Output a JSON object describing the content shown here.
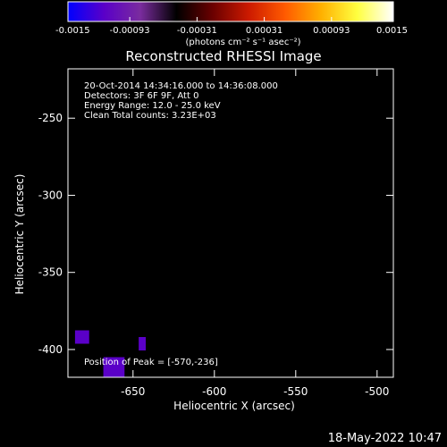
{
  "colorbar": {
    "ticks": [
      "-0.0015",
      "-0.00093",
      "-0.00031",
      "0.00031",
      "0.00093",
      "0.0015"
    ],
    "unit_label": "(photons cm⁻² s⁻¹ asec⁻²)",
    "range": [
      -0.0015,
      0.0015
    ],
    "colors": [
      "#0000ff",
      "#5a00c8",
      "#7a2c9e",
      "#000000",
      "#6a0000",
      "#cc1a00",
      "#ff5a00",
      "#ffb000",
      "#ffff40",
      "#ffffff"
    ]
  },
  "chart_data": {
    "type": "heatmap",
    "title": "Reconstructed RHESSI Image",
    "xlabel": "Heliocentric X (arcsec)",
    "ylabel": "Heliocentric Y (arcsec)",
    "xlim": [
      -690,
      -490
    ],
    "ylim": [
      -418,
      -218
    ],
    "x_ticks": [
      -650,
      -600,
      -550,
      -500
    ],
    "y_ticks": [
      -250,
      -300,
      -350,
      -400
    ],
    "x_tick_labels": [
      "-650",
      "-600",
      "-550",
      "-500"
    ],
    "y_tick_labels": [
      "-250",
      "-300",
      "-350",
      "-400"
    ],
    "annotations": [
      "20-Oct-2014 14:34:16.000 to 14:36:08.000",
      "Detectors: 3F 6F 9F, Att 0",
      "Energy Range: 12.0 - 25.0 keV",
      "Clean     Total counts: 3.23E+03"
    ],
    "peak_label": "Position of Peak = [-570,-236]",
    "peak_position": [
      -570,
      -236
    ]
  },
  "footer": {
    "timestamp": "18-May-2022 10:47"
  }
}
